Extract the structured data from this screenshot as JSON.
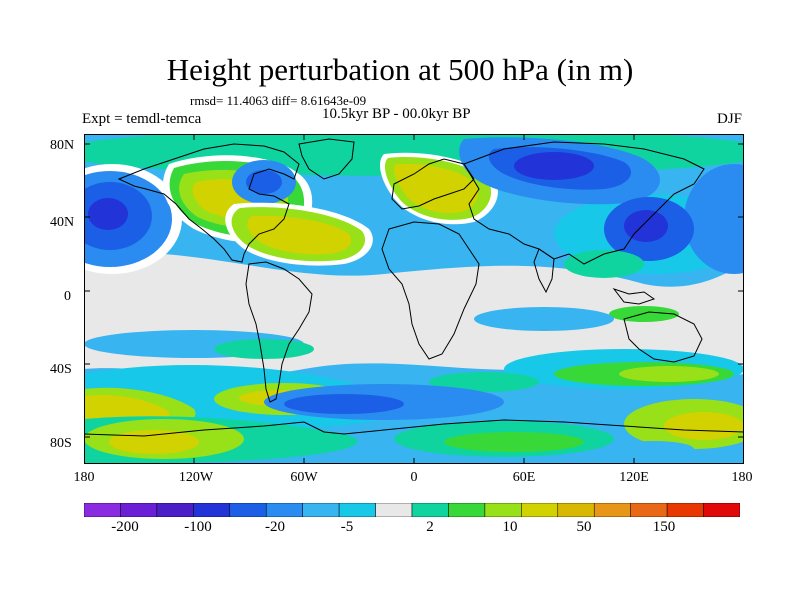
{
  "title": "Height perturbation at 500 hPa (in m)",
  "stats": "rmsd= 11.4063 diff= 8.61643e-09",
  "experiment": "Expt = temdl-temca",
  "period": "10.5kyr BP - 00.0kyr BP",
  "season": "DJF",
  "lat_ticks": [
    "80N",
    "40N",
    "0",
    "40S",
    "80S"
  ],
  "lon_ticks": [
    "180",
    "120W",
    "60W",
    "0",
    "60E",
    "120E",
    "180"
  ],
  "colorbar": {
    "colors": [
      "#8a2be2",
      "#6a1fd6",
      "#4b1fc8",
      "#2233d8",
      "#1a5fe6",
      "#2a8cf0",
      "#38b4f0",
      "#18c8e8",
      "#e8e8e8",
      "#10d4a0",
      "#38d838",
      "#98e018",
      "#d2d200",
      "#d8b800",
      "#e89618",
      "#e86818",
      "#e83800",
      "#e00808"
    ],
    "labels": [
      "-200",
      "-100",
      "-20",
      "-5",
      "2",
      "10",
      "50",
      "150"
    ]
  }
}
